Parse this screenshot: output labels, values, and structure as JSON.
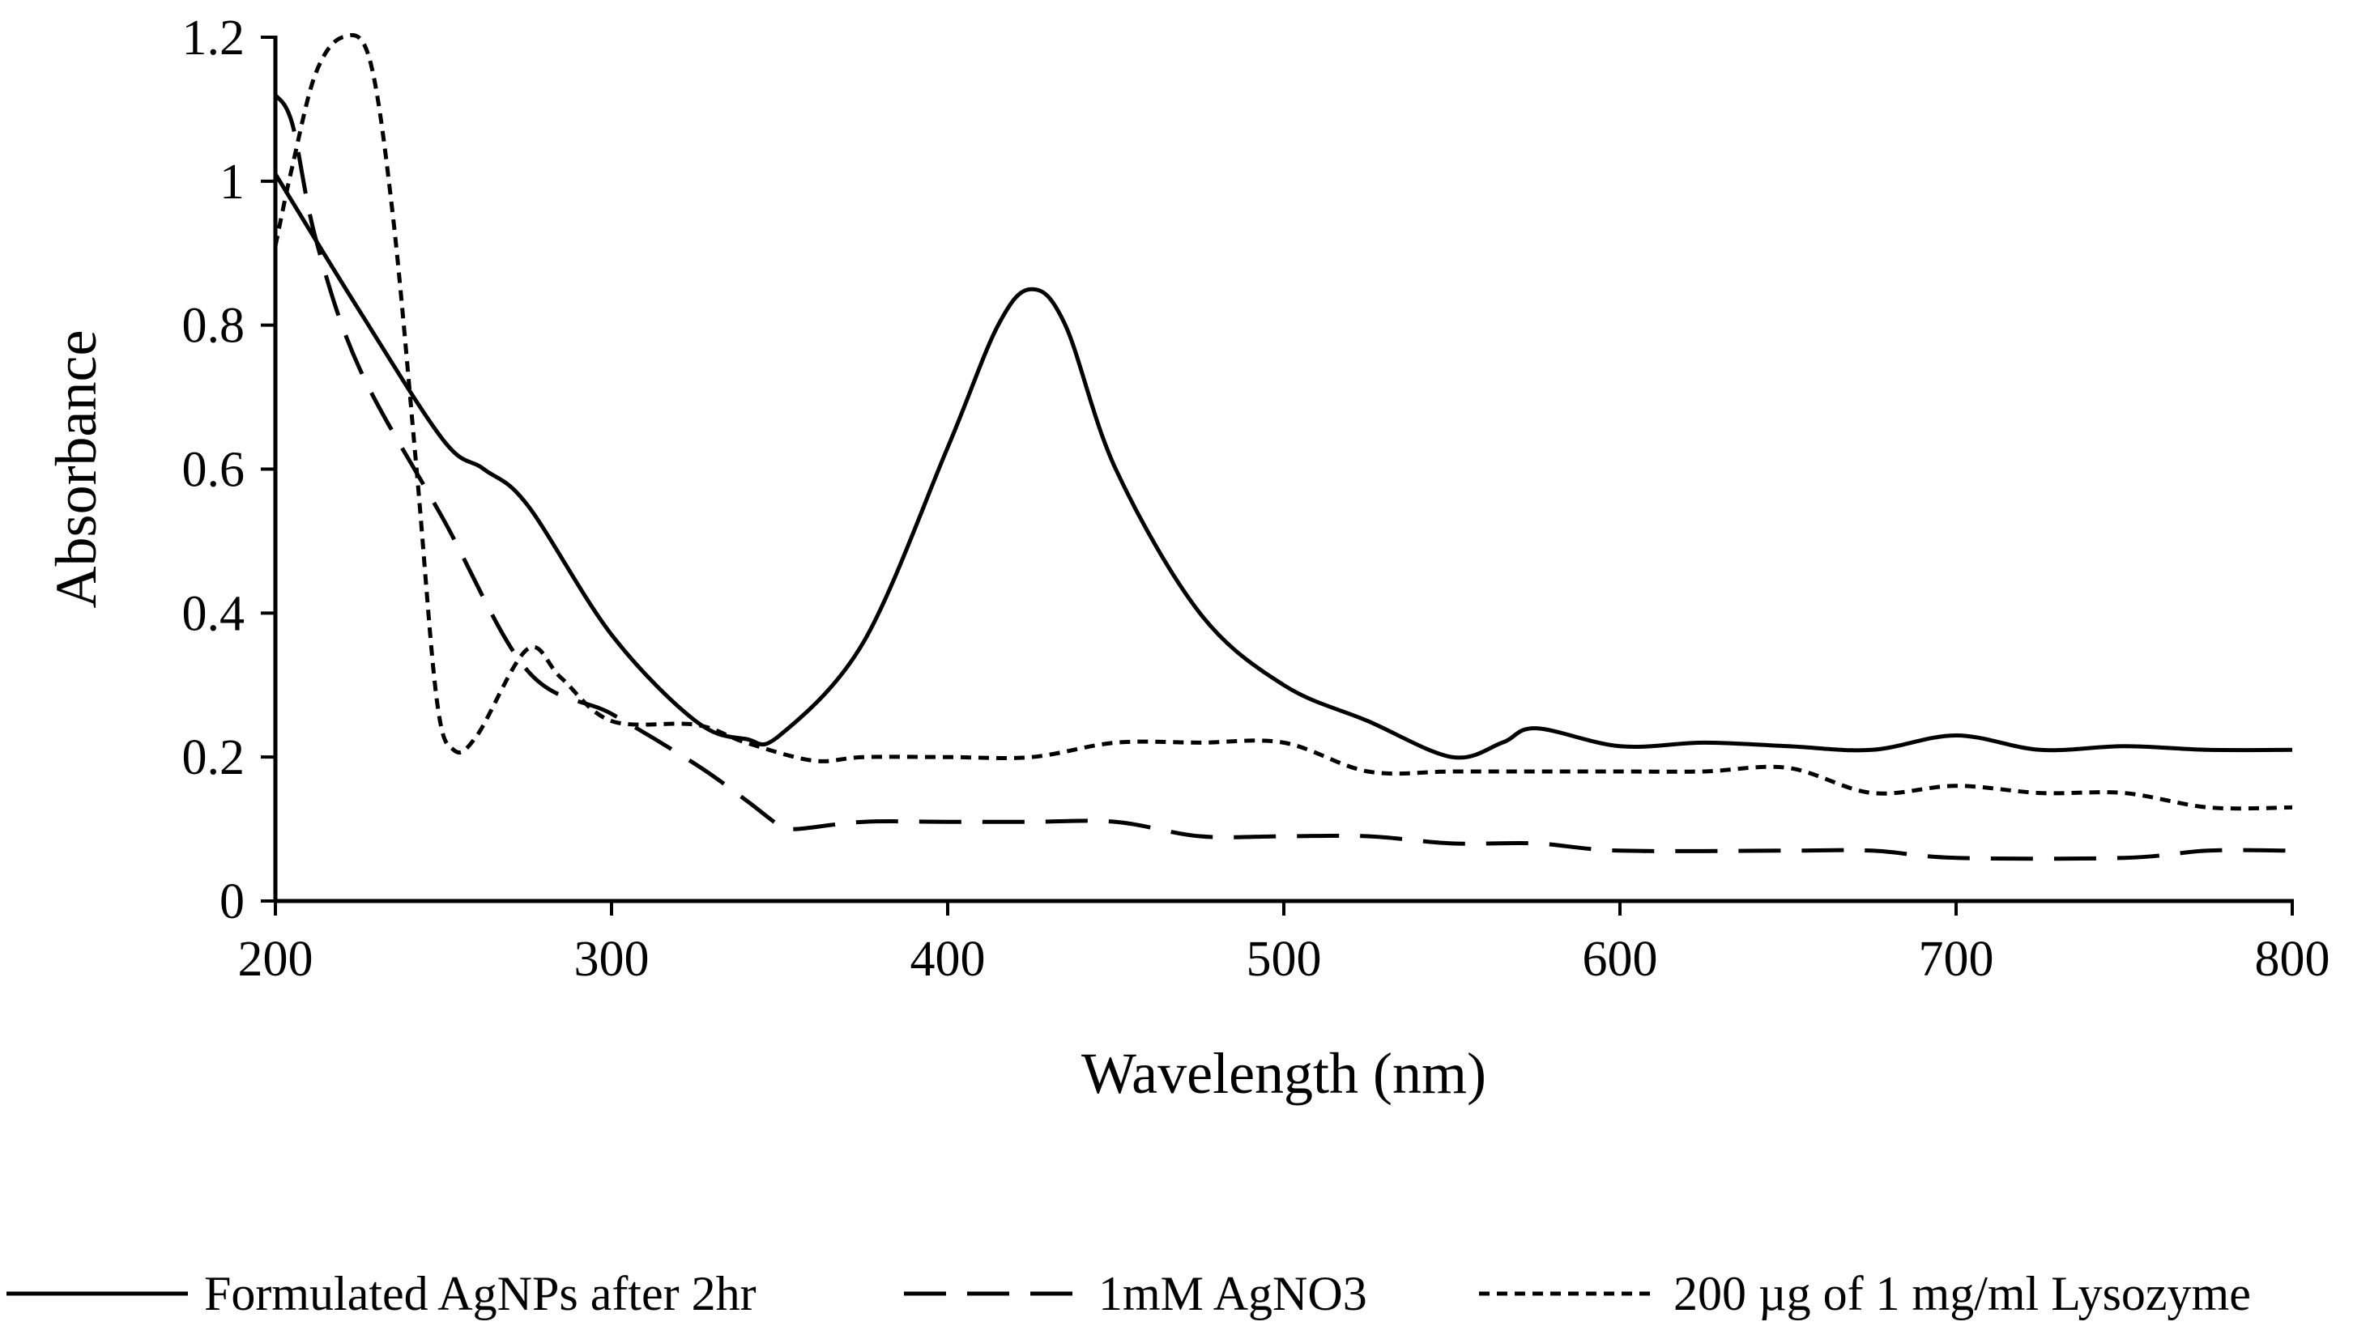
{
  "chart_data": {
    "type": "line",
    "title": "",
    "xlabel": "Wavelength (nm)",
    "ylabel": "Absorbance",
    "xlim": [
      200,
      800
    ],
    "ylim": [
      0,
      1.2
    ],
    "x_ticks": [
      200,
      300,
      400,
      500,
      600,
      700,
      800
    ],
    "y_ticks": [
      0,
      0.2,
      0.4,
      0.6,
      0.8,
      1,
      1.2
    ],
    "x_tick_labels": [
      "200",
      "300",
      "400",
      "500",
      "600",
      "700",
      "800"
    ],
    "y_tick_labels": [
      "0",
      "0.2",
      "0.4",
      "0.6",
      "0.8",
      "1",
      "1.2"
    ],
    "grid": false,
    "legend_position": "bottom",
    "series": [
      {
        "name": "Formulated AgNPs after 2hr",
        "style": "solid",
        "points": [
          [
            200,
            1.01
          ],
          [
            225,
            0.82
          ],
          [
            250,
            0.64
          ],
          [
            262,
            0.6
          ],
          [
            275,
            0.55
          ],
          [
            300,
            0.37
          ],
          [
            325,
            0.25
          ],
          [
            340,
            0.225
          ],
          [
            350,
            0.23
          ],
          [
            375,
            0.36
          ],
          [
            400,
            0.63
          ],
          [
            415,
            0.8
          ],
          [
            425,
            0.85
          ],
          [
            435,
            0.8
          ],
          [
            450,
            0.6
          ],
          [
            475,
            0.4
          ],
          [
            500,
            0.3
          ],
          [
            525,
            0.25
          ],
          [
            550,
            0.2
          ],
          [
            565,
            0.22
          ],
          [
            575,
            0.24
          ],
          [
            600,
            0.215
          ],
          [
            625,
            0.22
          ],
          [
            650,
            0.215
          ],
          [
            675,
            0.21
          ],
          [
            700,
            0.23
          ],
          [
            725,
            0.21
          ],
          [
            750,
            0.215
          ],
          [
            775,
            0.21
          ],
          [
            800,
            0.21
          ]
        ]
      },
      {
        "name": "1mM AgNO3",
        "style": "dashed",
        "points": [
          [
            200,
            1.12
          ],
          [
            205,
            1.08
          ],
          [
            212,
            0.92
          ],
          [
            225,
            0.74
          ],
          [
            250,
            0.53
          ],
          [
            275,
            0.32
          ],
          [
            300,
            0.26
          ],
          [
            325,
            0.19
          ],
          [
            340,
            0.14
          ],
          [
            350,
            0.105
          ],
          [
            355,
            0.1
          ],
          [
            375,
            0.11
          ],
          [
            400,
            0.11
          ],
          [
            425,
            0.11
          ],
          [
            450,
            0.11
          ],
          [
            475,
            0.09
          ],
          [
            500,
            0.09
          ],
          [
            525,
            0.09
          ],
          [
            550,
            0.08
          ],
          [
            575,
            0.08
          ],
          [
            600,
            0.07
          ],
          [
            650,
            0.07
          ],
          [
            675,
            0.07
          ],
          [
            700,
            0.06
          ],
          [
            750,
            0.06
          ],
          [
            775,
            0.07
          ],
          [
            800,
            0.07
          ]
        ]
      },
      {
        "name": "200 µg of 1 mg/ml  Lysozyme",
        "style": "dotted",
        "points": [
          [
            200,
            0.91
          ],
          [
            205,
            1.02
          ],
          [
            212,
            1.15
          ],
          [
            220,
            1.2
          ],
          [
            228,
            1.17
          ],
          [
            235,
            0.95
          ],
          [
            242,
            0.6
          ],
          [
            248,
            0.28
          ],
          [
            253,
            0.21
          ],
          [
            260,
            0.23
          ],
          [
            275,
            0.35
          ],
          [
            285,
            0.31
          ],
          [
            300,
            0.25
          ],
          [
            325,
            0.245
          ],
          [
            340,
            0.22
          ],
          [
            360,
            0.195
          ],
          [
            375,
            0.2
          ],
          [
            400,
            0.2
          ],
          [
            425,
            0.2
          ],
          [
            450,
            0.22
          ],
          [
            475,
            0.22
          ],
          [
            500,
            0.22
          ],
          [
            525,
            0.18
          ],
          [
            550,
            0.18
          ],
          [
            575,
            0.18
          ],
          [
            600,
            0.18
          ],
          [
            625,
            0.18
          ],
          [
            650,
            0.185
          ],
          [
            675,
            0.15
          ],
          [
            700,
            0.16
          ],
          [
            725,
            0.15
          ],
          [
            750,
            0.15
          ],
          [
            775,
            0.13
          ],
          [
            800,
            0.13
          ]
        ]
      }
    ]
  }
}
